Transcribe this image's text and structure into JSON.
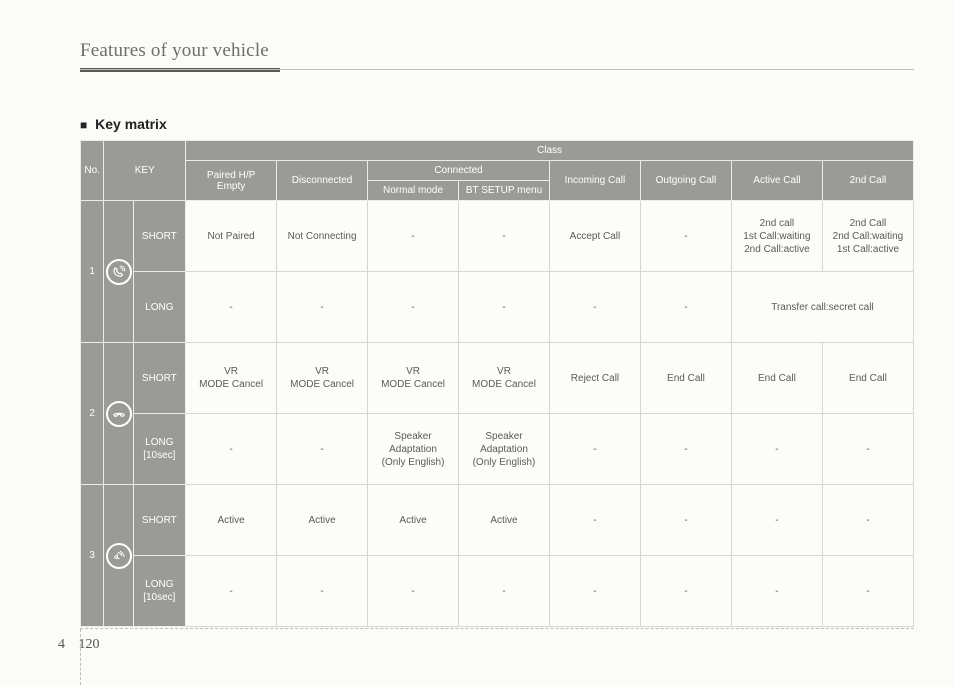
{
  "header": {
    "running_title": "Features of your vehicle"
  },
  "section": {
    "title": "Key matrix",
    "bullet": "■"
  },
  "colors": {
    "header_bg": "#9a9a97",
    "header_fg": "#ffffff",
    "cell_bg": "#fcfcf8",
    "cell_fg": "#5a5a57",
    "page_bg": "#fbfbf8",
    "rule_grey": "#bfbfbf",
    "rule_dark": "#5a5a5a"
  },
  "table": {
    "head": {
      "no": "No.",
      "key": "KEY",
      "class": "Class",
      "col_paired": "Paired H/P\nEmpty",
      "col_disc": "Disconnected",
      "col_conn": "Connected",
      "col_normal": "Normal mode",
      "col_setup": "BT SETUP menu",
      "col_incom": "Incoming Call",
      "col_outgo": "Outgoing Call",
      "col_active": "Active Call",
      "col_2nd": "2nd Call"
    },
    "press": {
      "short": "SHORT",
      "long": "LONG",
      "long10": "LONG\n[10sec]"
    },
    "icons": {
      "row1": "answer-icon",
      "row2": "hangup-icon",
      "row3": "voice-icon"
    },
    "rows": [
      {
        "no": "1",
        "short": [
          "Not Paired",
          "Not Connecting",
          "-",
          "-",
          "Accept Call",
          "-",
          "2nd call\n1st Call:waiting\n2nd Call:active",
          "2nd Call\n2nd Call:waiting\n1st Call:active"
        ],
        "long_label": "long",
        "long": [
          "-",
          "-",
          "-",
          "-",
          "-",
          "-",
          "Transfer call:secret call"
        ]
      },
      {
        "no": "2",
        "short": [
          "VR\nMODE Cancel",
          "VR\nMODE Cancel",
          "VR\nMODE Cancel",
          "VR\nMODE Cancel",
          "Reject Call",
          "End Call",
          "End Call",
          "End Call"
        ],
        "long_label": "long10",
        "long": [
          "-",
          "-",
          "Speaker\nAdaptation\n(Only English)",
          "Speaker\nAdaptation\n(Only English)",
          "-",
          "-",
          "-",
          "-"
        ]
      },
      {
        "no": "3",
        "short": [
          "Active",
          "Active",
          "Active",
          "Active",
          "-",
          "-",
          "-",
          "-"
        ],
        "long_label": "long10",
        "long": [
          "-",
          "-",
          "-",
          "-",
          "-",
          "-",
          "-",
          "-"
        ]
      }
    ]
  },
  "footer": {
    "section_no": "4",
    "page_no": "120"
  }
}
